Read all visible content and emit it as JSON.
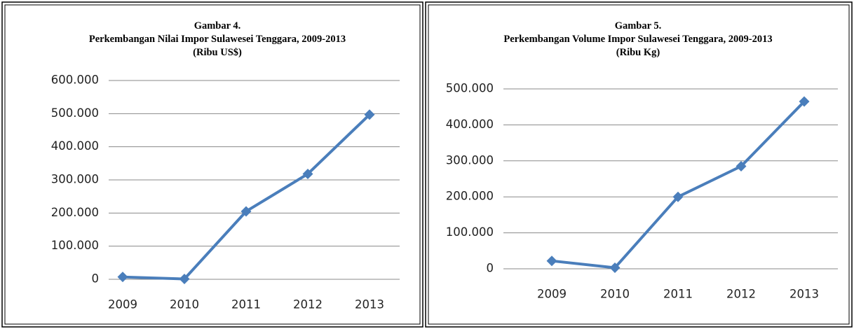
{
  "chart_data": [
    {
      "type": "line",
      "title": [
        "Gambar 4.",
        "Perkembangan Nilai Impor Sulawesei Tenggara, 2009-2013",
        "(Ribu US$)"
      ],
      "categories": [
        "2009",
        "2010",
        "2011",
        "2012",
        "2013"
      ],
      "values": [
        7000,
        1000,
        205000,
        318000,
        497000
      ],
      "color": "#4a7ebb",
      "ylim": [
        0,
        600000
      ],
      "yticks": [
        0,
        {
          "value": 100000,
          "label": "100.000"
        },
        {
          "value": 200000,
          "label": "200.000"
        },
        {
          "value": 300000,
          "label": "300.000"
        },
        {
          "value": 400000,
          "label": "400.000"
        },
        {
          "value": 500000,
          "label": "500.000"
        },
        {
          "value": 600000,
          "label": "600.000"
        }
      ],
      "grid": true
    },
    {
      "type": "line",
      "title": [
        "Gambar 5.",
        "Perkembangan Volume Impor Sulawesei Tenggara, 2009-2013",
        "(Ribu Kg)"
      ],
      "categories": [
        "2009",
        "2010",
        "2011",
        "2012",
        "2013"
      ],
      "values": [
        22000,
        3000,
        200000,
        285000,
        465000
      ],
      "color": "#4a7ebb",
      "ylim": [
        0,
        500000
      ],
      "yticks": [
        0,
        {
          "value": 100000,
          "label": "100.000"
        },
        {
          "value": 200000,
          "label": "200.000"
        },
        {
          "value": 300000,
          "label": "300.000"
        },
        {
          "value": 400000,
          "label": "400.000"
        },
        {
          "value": 500000,
          "label": "500.000"
        }
      ],
      "grid": true
    }
  ]
}
